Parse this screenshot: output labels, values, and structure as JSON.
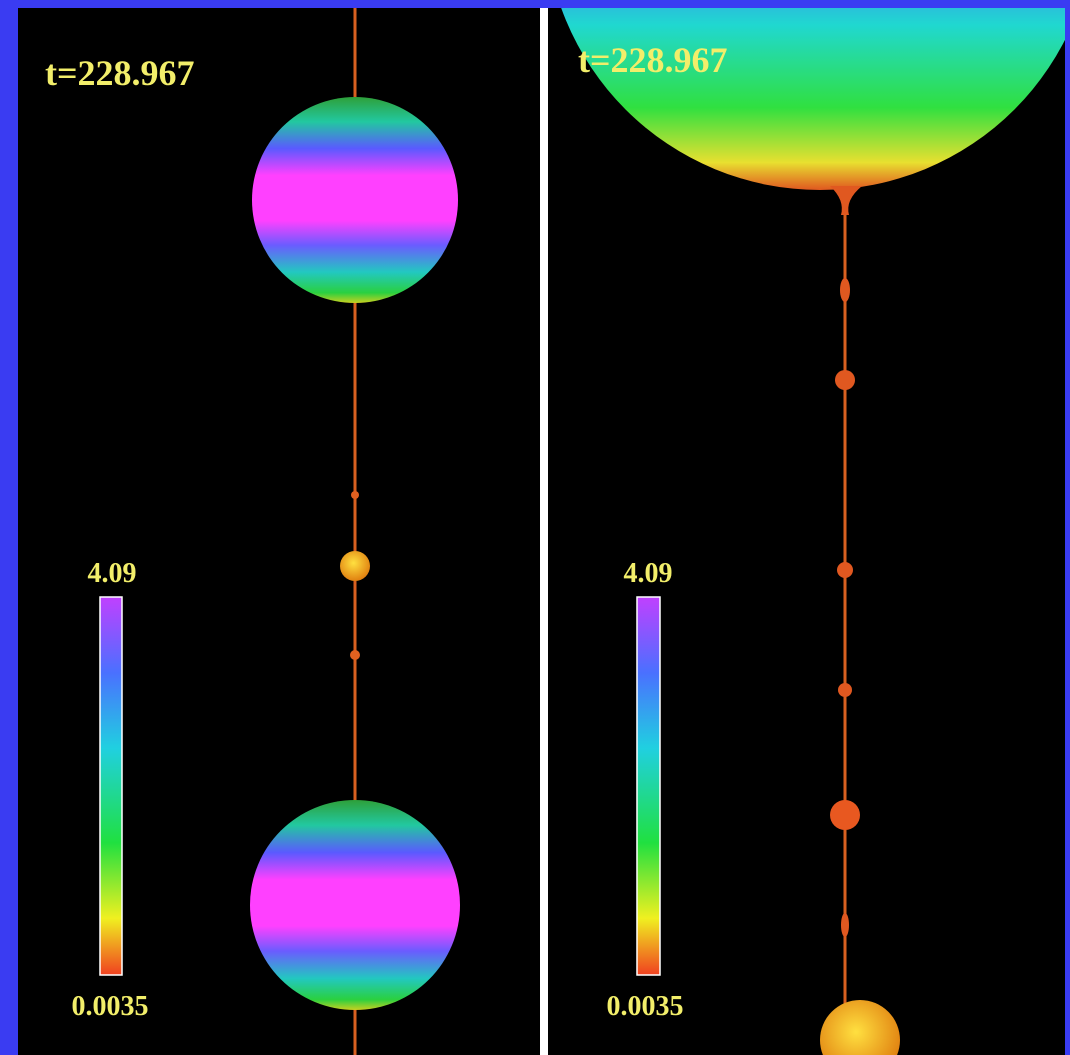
{
  "panels": [
    {
      "time_label": "t=228.967",
      "colorbar": {
        "max_label": "4.09",
        "min_label": "0.0035"
      }
    },
    {
      "time_label": "t=228.967",
      "colorbar": {
        "max_label": "4.09",
        "min_label": "0.0035"
      }
    }
  ]
}
